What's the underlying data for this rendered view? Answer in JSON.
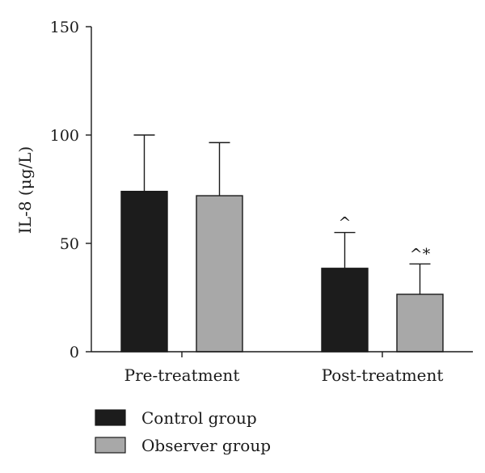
{
  "chart_data": {
    "type": "bar",
    "categories": [
      "Pre-treatment",
      "Post-treatment"
    ],
    "series": [
      {
        "name": "Control group",
        "values": [
          74,
          38.5
        ],
        "errors": [
          26,
          16.5
        ],
        "color": "#1c1c1c"
      },
      {
        "name": "Observer group",
        "values": [
          72,
          26.5
        ],
        "errors": [
          24.5,
          14
        ],
        "color": "#a8a8a8"
      }
    ],
    "annotations": [
      [
        "",
        ""
      ],
      [
        "^",
        "^*"
      ]
    ],
    "ylabel": "IL-8 (μg/L)",
    "xlabel": "",
    "ylim": [
      0,
      150
    ],
    "yticks": [
      "0",
      "50",
      "100",
      "150"
    ],
    "grid": false,
    "legend_position": "bottom-left"
  }
}
